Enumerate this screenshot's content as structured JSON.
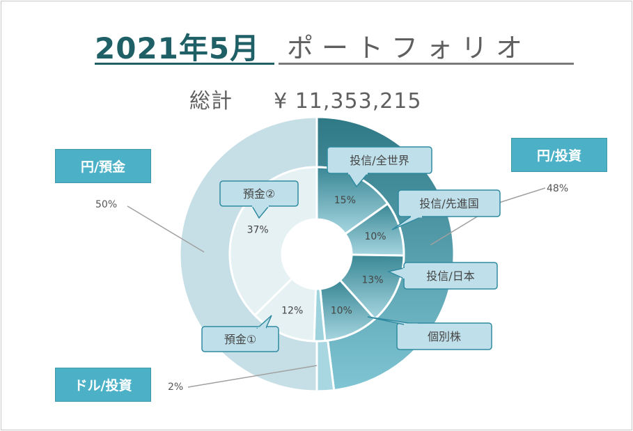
{
  "title": {
    "year_month": "2021年5月",
    "rest": "ポートフォリオ"
  },
  "total": {
    "label": "総計",
    "value": "¥ 11,353,215"
  },
  "categories": [
    {
      "key": "jpy_invest",
      "label": "円/投資",
      "percent": "48%"
    },
    {
      "key": "jpy_deposit",
      "label": "円/預金",
      "percent": "50%"
    },
    {
      "key": "usd_invest",
      "label": "ドル/投資",
      "percent": "2%"
    }
  ],
  "colors": {
    "title_accent": "#1f5f66",
    "category_box": "#4cb1c6",
    "callout_fill": "#bfe0ea",
    "callout_stroke": "#2f8aa0"
  },
  "chart_data": {
    "type": "pie",
    "subtype": "nested-donut",
    "outer": {
      "labels": [
        "円/投資",
        "ドル/投資",
        "円/預金"
      ],
      "values": [
        48,
        2,
        50
      ]
    },
    "inner": {
      "labels": [
        "投信/全世界",
        "投信/先進国",
        "投信/日本",
        "個別株",
        "ドル/投資",
        "預金①",
        "預金②"
      ],
      "values": [
        15,
        10,
        13,
        10,
        2,
        12,
        37
      ],
      "percent_labels": [
        "15%",
        "10%",
        "13%",
        "10%",
        "",
        "12%",
        "37%"
      ]
    }
  }
}
